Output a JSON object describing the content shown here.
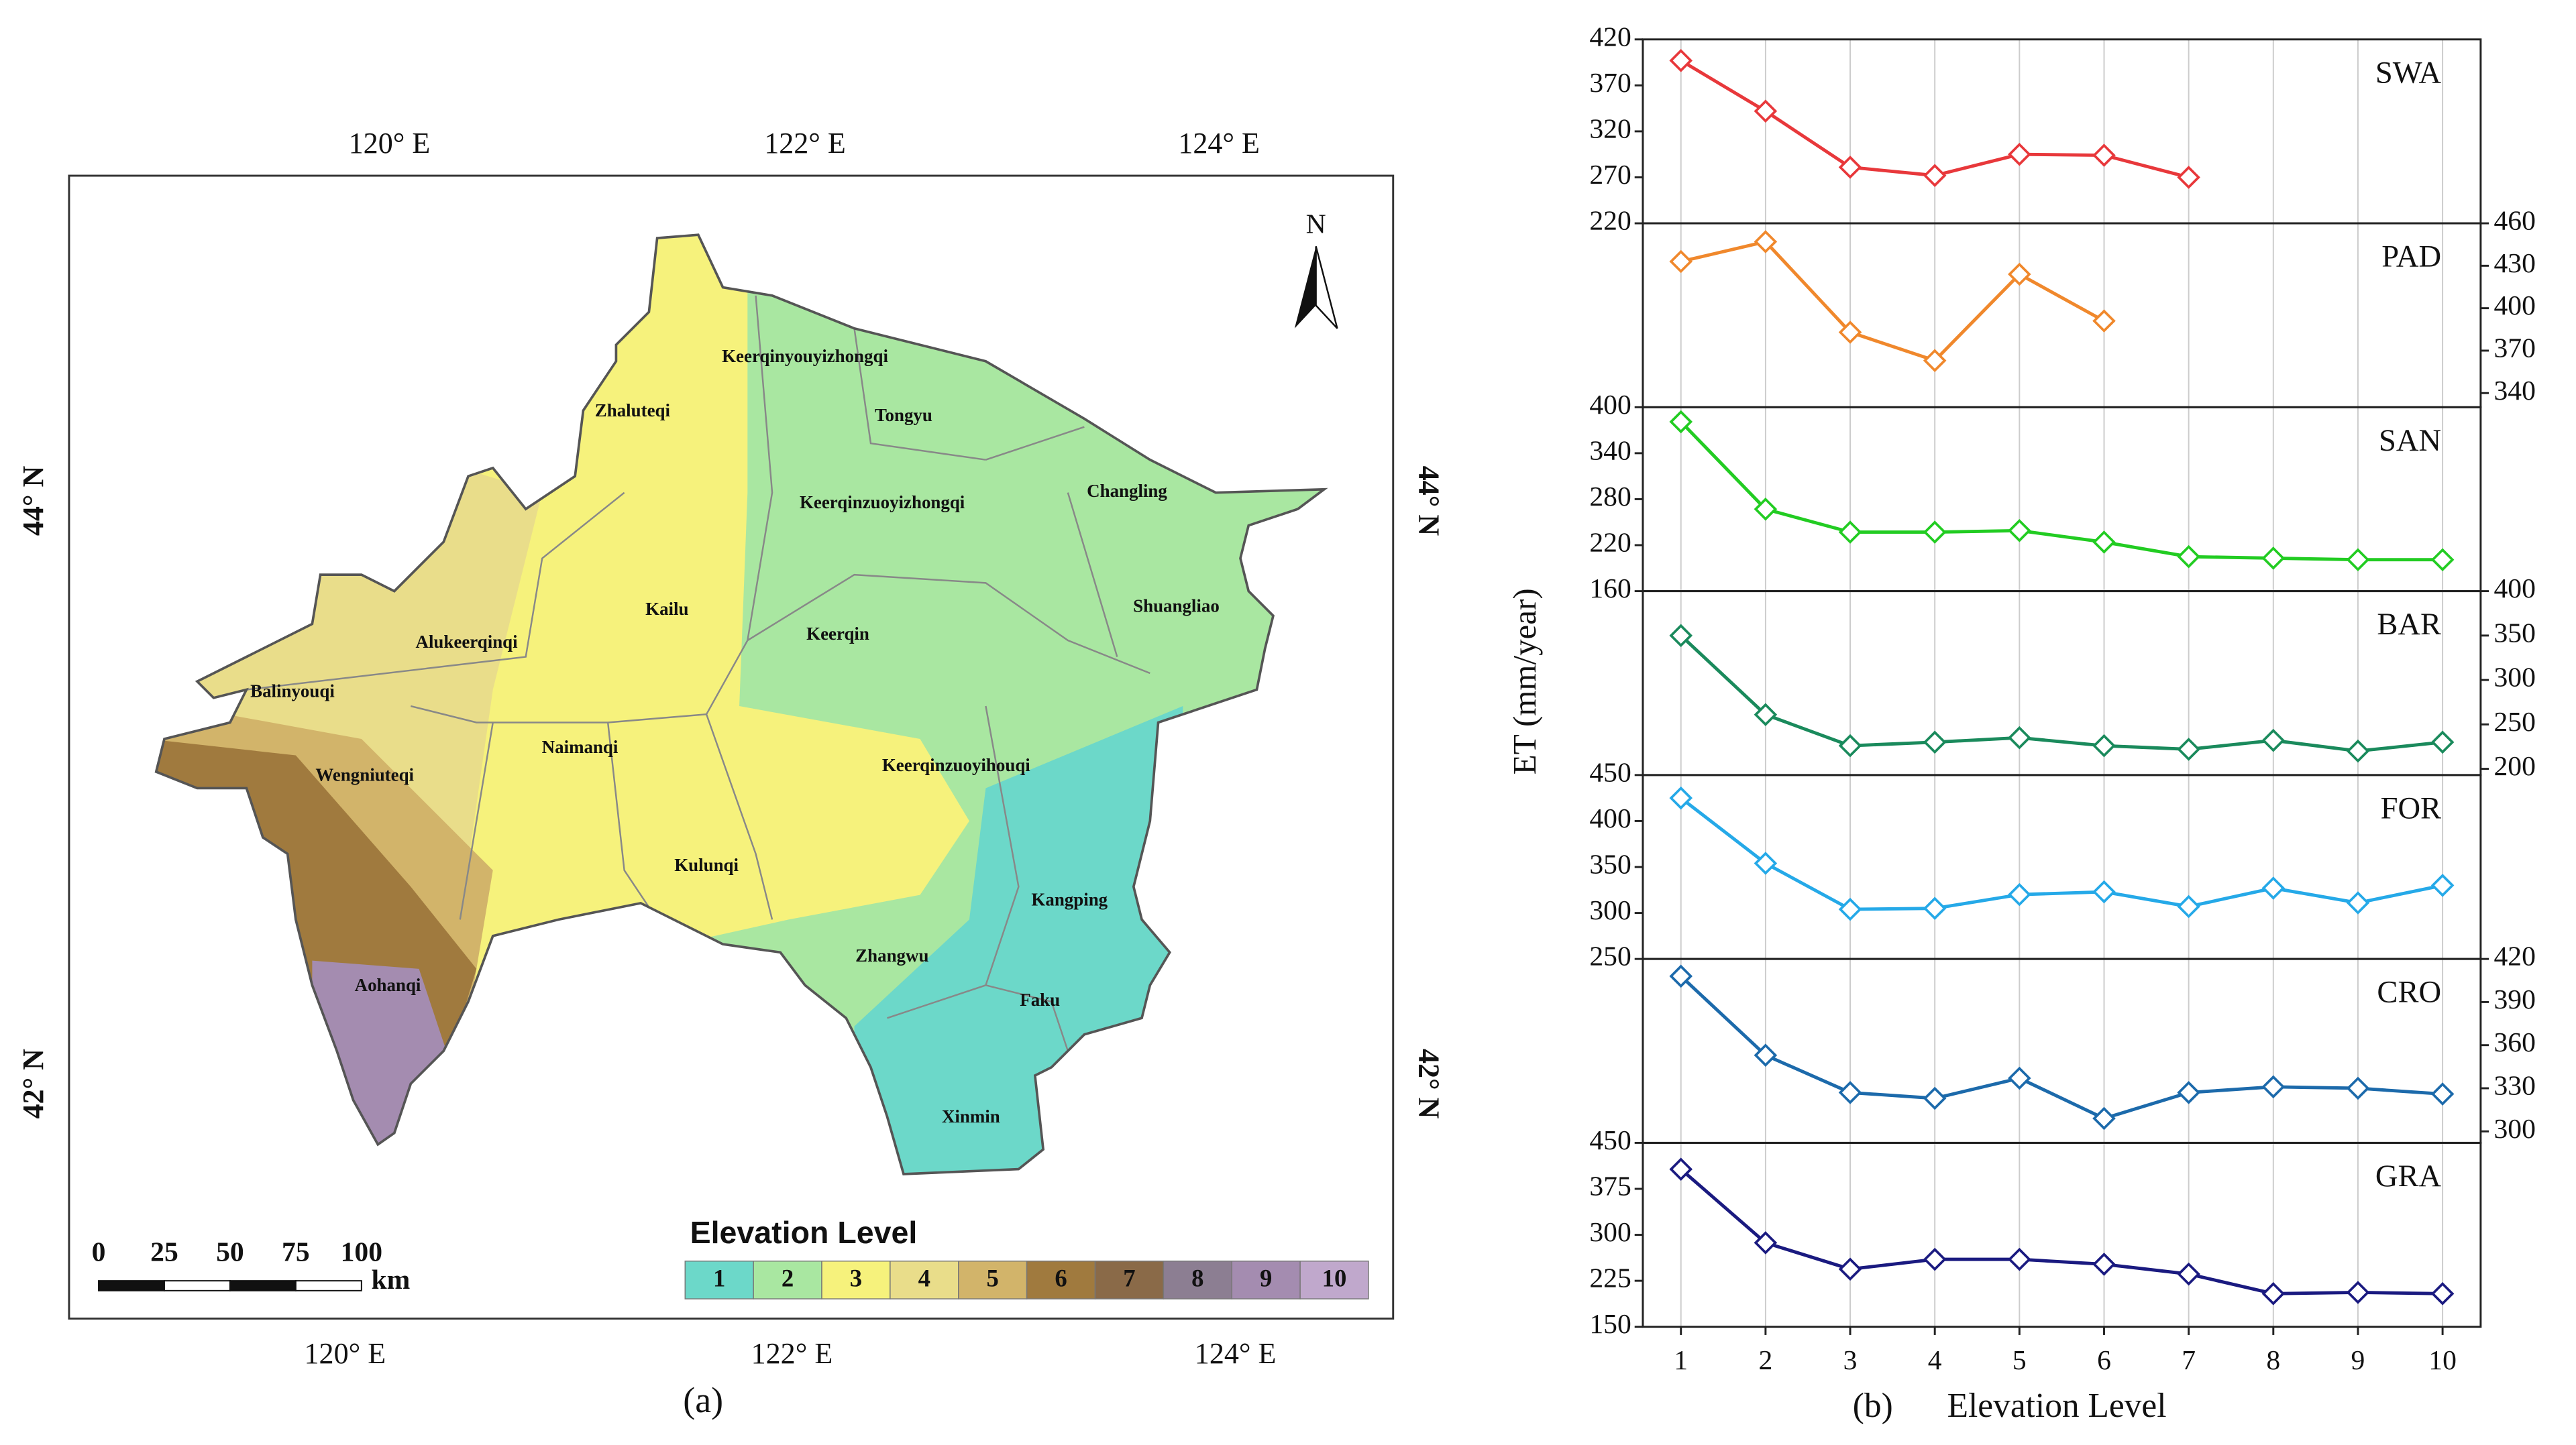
{
  "map": {
    "caption": "(a)",
    "lon_labels": [
      "120° E",
      "122° E",
      "124° E"
    ],
    "lat_labels": [
      "44° N",
      "42° N"
    ],
    "north": "N",
    "places": [
      "Keerqinyouyizhongqi",
      "Tongyu",
      "Zhaluteqi",
      "Changling",
      "Keerqinzuoyizhongqi",
      "Kailu",
      "Shuangliao",
      "Alukeerqinqi",
      "Keerqin",
      "Balinyouqi",
      "Naimanqi",
      "Wengniuteqi",
      "Keerqinzuoyihouqi",
      "Kulunqi",
      "Kangping",
      "Zhangwu",
      "Aohanqi",
      "Faku",
      "Xinmin"
    ],
    "legend": {
      "title": "Elevation Level",
      "levels": [
        1,
        2,
        3,
        4,
        5,
        6,
        7,
        8,
        9,
        10
      ],
      "colors": [
        "#6cd8c9",
        "#a9e7a1",
        "#f6f27c",
        "#e9dd8a",
        "#d2b46a",
        "#a07a3e",
        "#8a6a48",
        "#8c7e92",
        "#a48cb0",
        "#c0a8cc"
      ]
    },
    "scalebar": {
      "ticks": [
        0,
        25,
        50,
        75,
        100
      ],
      "unit": "km"
    }
  },
  "chart_data": {
    "type": "line",
    "xlabel_prefix": "(b)",
    "xlabel": "Elevation Level",
    "ylabel": "ET (mm/year)",
    "x": [
      1,
      2,
      3,
      4,
      5,
      6,
      7,
      8,
      9,
      10
    ],
    "xticks": [
      1,
      2,
      3,
      4,
      5,
      6,
      7,
      8,
      9,
      10
    ],
    "xlim": [
      0.55,
      10.45
    ],
    "grid": true,
    "series": [
      {
        "name": "SWA",
        "color": "#e8383b",
        "axis": "y",
        "ylim": [
          220,
          420
        ],
        "yticks": [
          220,
          270,
          320,
          370,
          420
        ],
        "values": [
          397,
          342,
          281,
          272,
          295,
          294,
          270,
          null,
          null,
          null
        ]
      },
      {
        "name": "PAD",
        "color": "#f0882c",
        "axis": "y2",
        "ylim": [
          330,
          460
        ],
        "yticks": [
          340,
          370,
          400,
          430,
          460
        ],
        "values": [
          433,
          447,
          383,
          363,
          424,
          391,
          null,
          null,
          null,
          null
        ]
      },
      {
        "name": "SAN",
        "color": "#22cc22",
        "axis": "y",
        "ylim": [
          160,
          400
        ],
        "yticks": [
          160,
          220,
          280,
          340,
          400
        ],
        "values": [
          381,
          267,
          237,
          237,
          239,
          224,
          205,
          203,
          201,
          201
        ]
      },
      {
        "name": "BAR",
        "color": "#1a8a5c",
        "axis": "y2",
        "ylim": [
          193,
          400
        ],
        "yticks": [
          200,
          250,
          300,
          350,
          400
        ],
        "values": [
          350,
          261,
          226,
          230,
          235,
          226,
          222,
          232,
          220,
          230
        ]
      },
      {
        "name": "FOR",
        "color": "#25a9e8",
        "axis": "y",
        "ylim": [
          250,
          450
        ],
        "yticks": [
          250,
          300,
          350,
          400,
          450
        ],
        "values": [
          425,
          354,
          304,
          305,
          320,
          323,
          307,
          327,
          311,
          330
        ]
      },
      {
        "name": "CRO",
        "color": "#1c6aab",
        "axis": "y2",
        "ylim": [
          292,
          420
        ],
        "yticks": [
          300,
          330,
          360,
          390,
          420
        ],
        "values": [
          408,
          353,
          327,
          323,
          337,
          309,
          327,
          331,
          330,
          326
        ]
      },
      {
        "name": "GRA",
        "color": "#1a1a80",
        "axis": "y",
        "ylim": [
          150,
          450
        ],
        "yticks": [
          150,
          225,
          300,
          375,
          450
        ],
        "values": [
          407,
          287,
          244,
          260,
          260,
          252,
          236,
          204,
          206,
          204
        ]
      }
    ]
  }
}
